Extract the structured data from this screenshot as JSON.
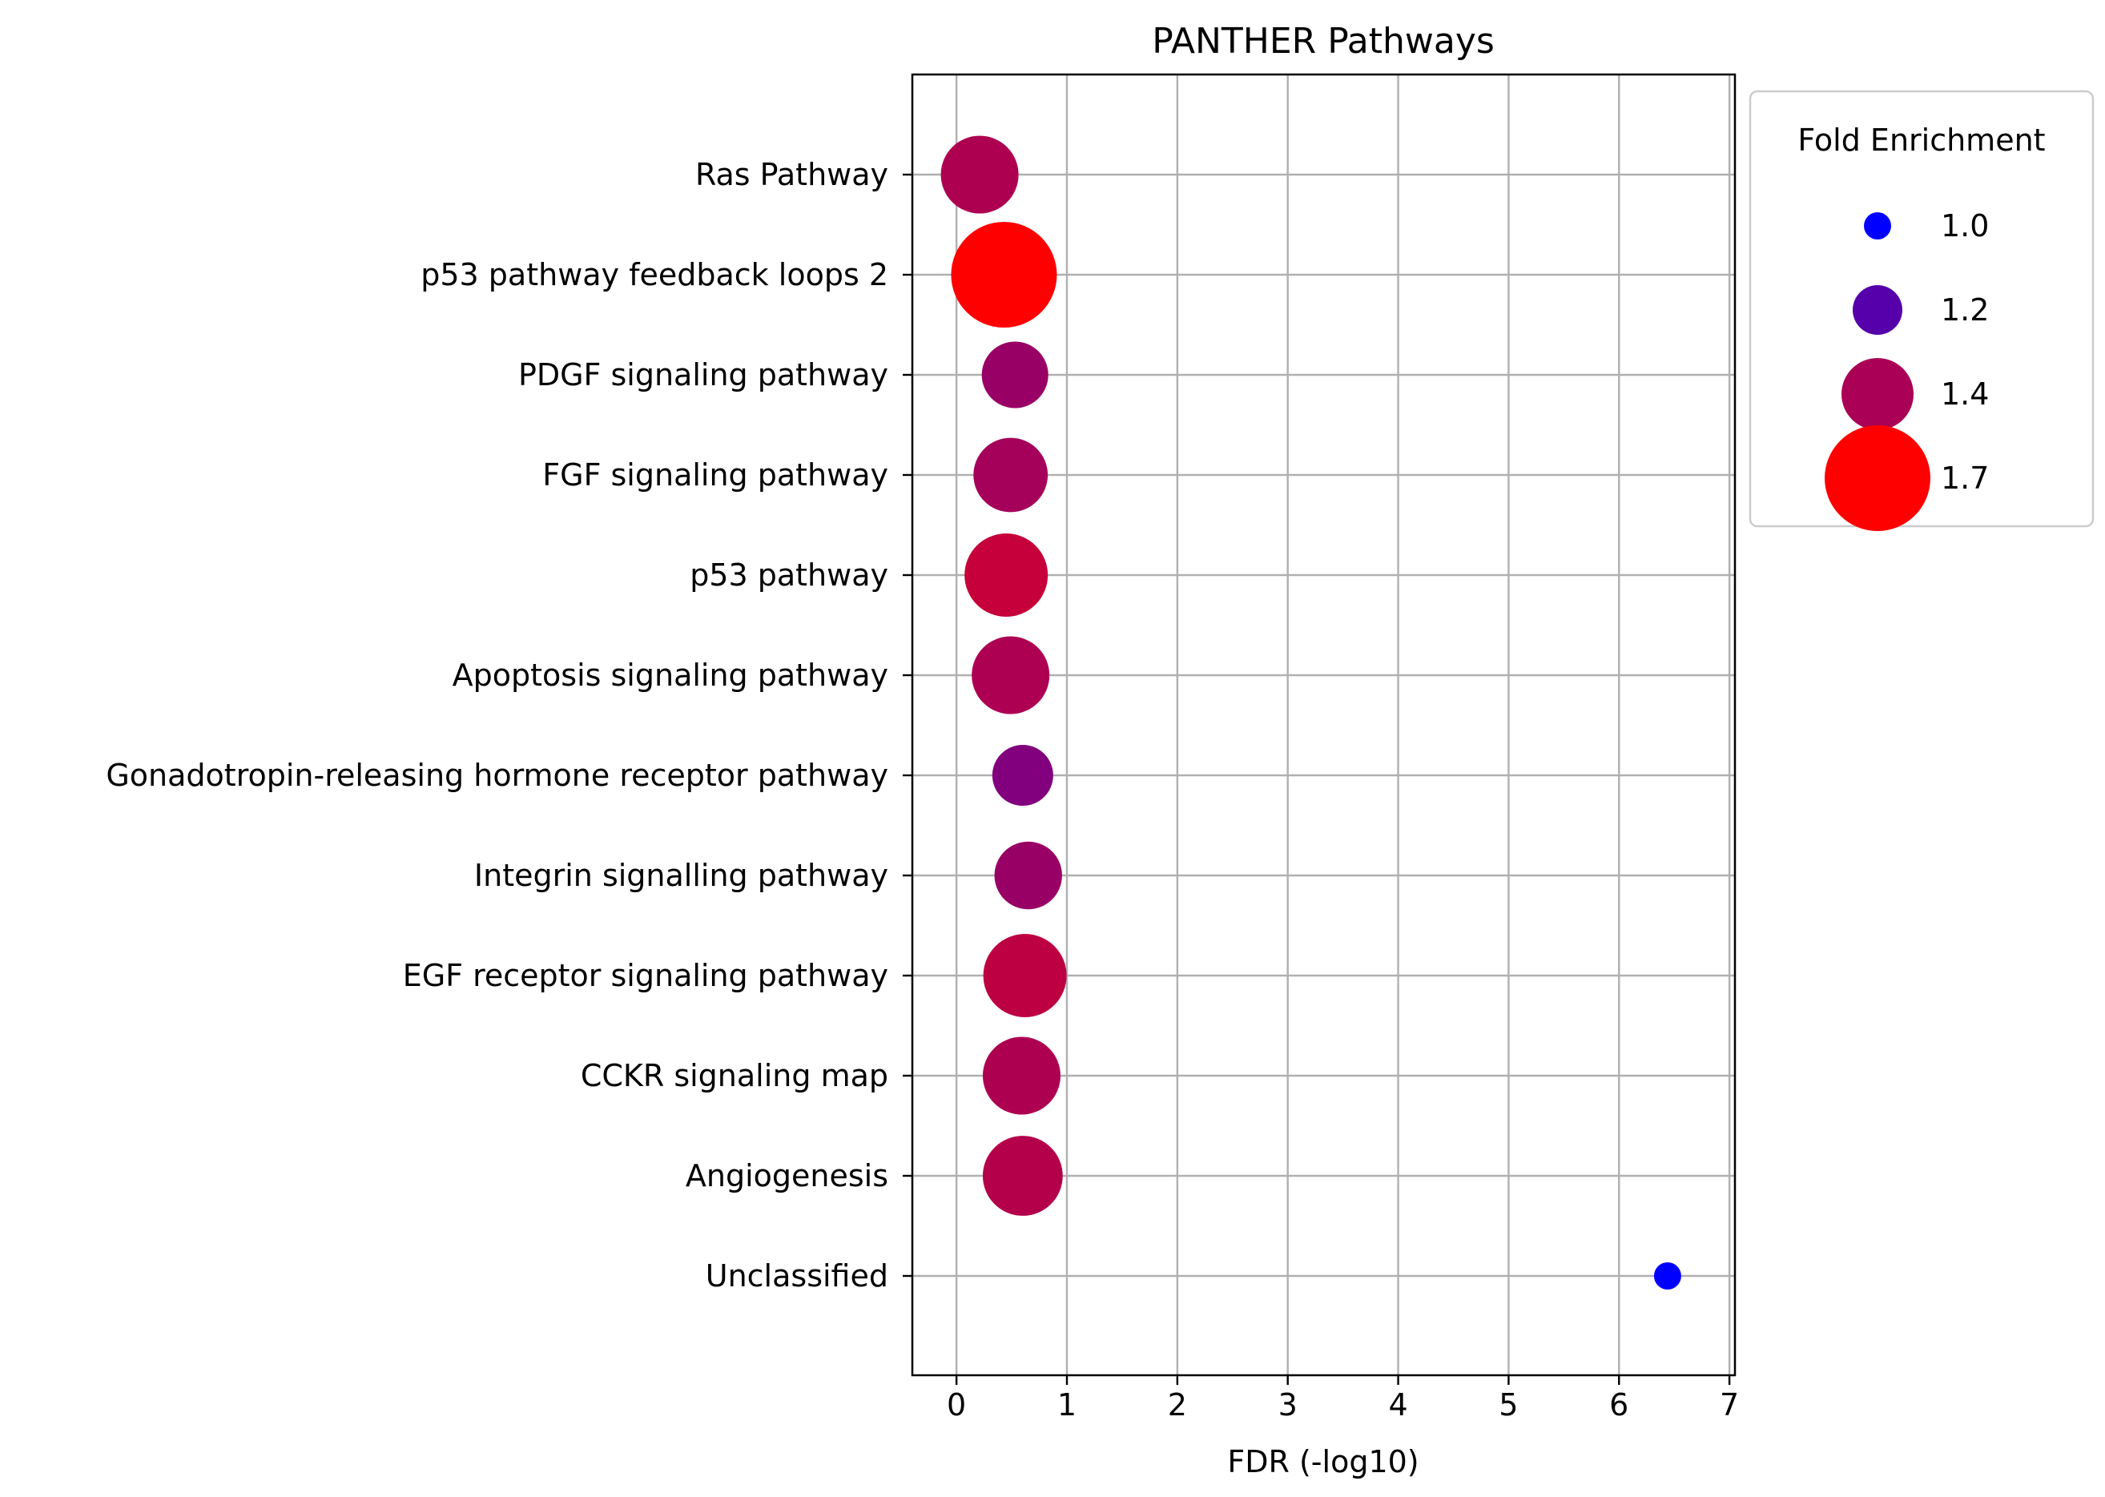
{
  "chart_data": {
    "type": "scatter",
    "title": "PANTHER Pathways",
    "xlabel": "FDR (-log10)",
    "ylabel": "",
    "xlim": [
      -0.4,
      7.05
    ],
    "xticks": [
      "0",
      "1",
      "2",
      "3",
      "4",
      "5",
      "6",
      "7"
    ],
    "grid": true,
    "categories": [
      "Ras Pathway",
      "p53 pathway feedback loops 2",
      "PDGF signaling pathway",
      "FGF signaling pathway",
      "p53 pathway",
      "Apoptosis signaling pathway",
      "Gonadotropin-releasing hormone receptor pathway",
      "Integrin signalling pathway",
      "EGF receptor signaling pathway",
      "CCKR signaling map",
      "Angiogenesis",
      "Unclassified"
    ],
    "points": [
      {
        "category": "Ras Pathway",
        "x": 0.21,
        "fold_enrichment": 1.45,
        "color": "#AE0051"
      },
      {
        "category": "p53 pathway feedback loops 2",
        "x": 0.43,
        "fold_enrichment": 1.7,
        "color": "#FF0000"
      },
      {
        "category": "PDGF signaling pathway",
        "x": 0.53,
        "fold_enrichment": 1.35,
        "color": "#990066"
      },
      {
        "category": "FGF signaling pathway",
        "x": 0.49,
        "fold_enrichment": 1.42,
        "color": "#A5005A"
      },
      {
        "category": "p53 pathway",
        "x": 0.45,
        "fold_enrichment": 1.5,
        "color": "#C5003A"
      },
      {
        "category": "Apoptosis signaling pathway",
        "x": 0.49,
        "fold_enrichment": 1.45,
        "color": "#AD0052"
      },
      {
        "category": "Gonadotropin-releasing hormone receptor pathway",
        "x": 0.6,
        "fold_enrichment": 1.3,
        "color": "#82007D"
      },
      {
        "category": "Integrin signalling pathway",
        "x": 0.65,
        "fold_enrichment": 1.36,
        "color": "#990066"
      },
      {
        "category": "EGF receptor signaling pathway",
        "x": 0.62,
        "fold_enrichment": 1.5,
        "color": "#BD0042"
      },
      {
        "category": "CCKR signaling map",
        "x": 0.59,
        "fold_enrichment": 1.45,
        "color": "#AE0051"
      },
      {
        "category": "Angiogenesis",
        "x": 0.6,
        "fold_enrichment": 1.47,
        "color": "#B4004B"
      },
      {
        "category": "Unclassified",
        "x": 6.44,
        "fold_enrichment": 1.0,
        "color": "#0000FF"
      }
    ],
    "legend": {
      "title": "Fold Enrichment",
      "placement": "outside-right",
      "entries": [
        {
          "label": "1.0",
          "fold_enrichment": 1.0,
          "color": "#0000FF"
        },
        {
          "label": "1.2",
          "fold_enrichment": 1.2,
          "color": "#5500AA"
        },
        {
          "label": "1.4",
          "fold_enrichment": 1.4,
          "color": "#AA0055"
        },
        {
          "label": "1.7",
          "fold_enrichment": 1.7,
          "color": "#FF0000"
        }
      ]
    }
  }
}
